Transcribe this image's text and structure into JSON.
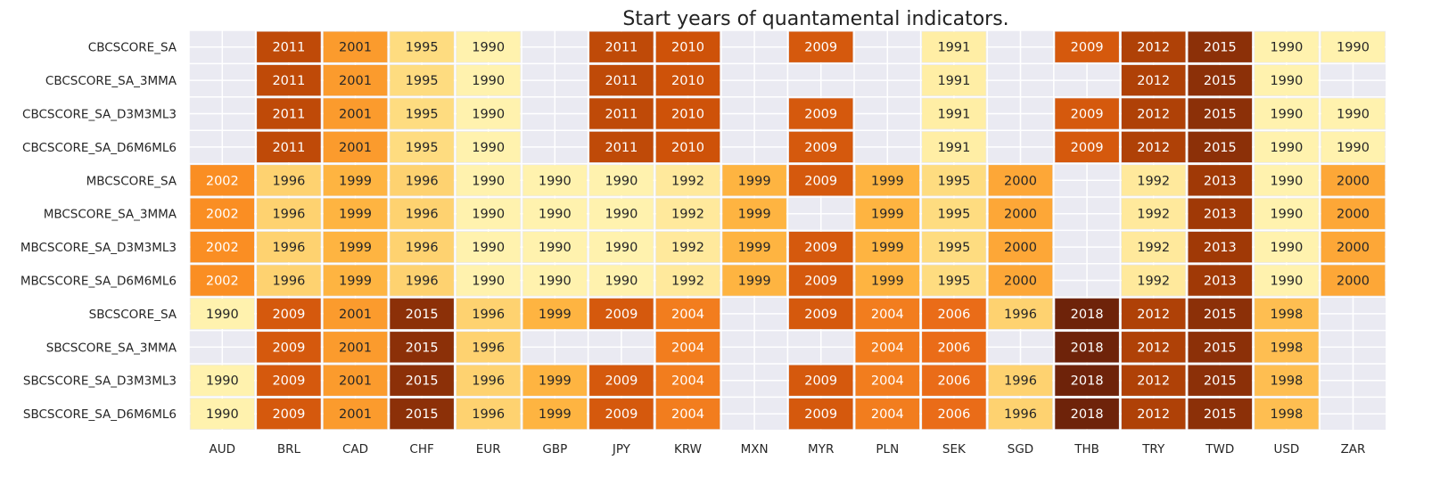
{
  "chart_data": {
    "type": "heatmap",
    "title": "Start years of quantamental indicators.",
    "columns": [
      "AUD",
      "BRL",
      "CAD",
      "CHF",
      "EUR",
      "GBP",
      "JPY",
      "KRW",
      "MXN",
      "MYR",
      "PLN",
      "SEK",
      "SGD",
      "THB",
      "TRY",
      "TWD",
      "USD",
      "ZAR"
    ],
    "rows": [
      "CBCSCORE_SA",
      "CBCSCORE_SA_3MMA",
      "CBCSCORE_SA_D3M3ML3",
      "CBCSCORE_SA_D6M6ML6",
      "MBCSCORE_SA",
      "MBCSCORE_SA_3MMA",
      "MBCSCORE_SA_D3M3ML3",
      "MBCSCORE_SA_D6M6ML6",
      "SBCSCORE_SA",
      "SBCSCORE_SA_3MMA",
      "SBCSCORE_SA_D3M3ML3",
      "SBCSCORE_SA_D6M6ML6"
    ],
    "values": [
      [
        null,
        2011,
        2001,
        1995,
        1990,
        null,
        2011,
        2010,
        null,
        2009,
        null,
        1991,
        null,
        2009,
        2012,
        2015,
        1990,
        1990
      ],
      [
        null,
        2011,
        2001,
        1995,
        1990,
        null,
        2011,
        2010,
        null,
        null,
        null,
        1991,
        null,
        null,
        2012,
        2015,
        1990,
        null
      ],
      [
        null,
        2011,
        2001,
        1995,
        1990,
        null,
        2011,
        2010,
        null,
        2009,
        null,
        1991,
        null,
        2009,
        2012,
        2015,
        1990,
        1990
      ],
      [
        null,
        2011,
        2001,
        1995,
        1990,
        null,
        2011,
        2010,
        null,
        2009,
        null,
        1991,
        null,
        2009,
        2012,
        2015,
        1990,
        1990
      ],
      [
        2002,
        1996,
        1999,
        1996,
        1990,
        1990,
        1990,
        1992,
        1999,
        2009,
        1999,
        1995,
        2000,
        null,
        1992,
        2013,
        1990,
        2000
      ],
      [
        2002,
        1996,
        1999,
        1996,
        1990,
        1990,
        1990,
        1992,
        1999,
        null,
        1999,
        1995,
        2000,
        null,
        1992,
        2013,
        1990,
        2000
      ],
      [
        2002,
        1996,
        1999,
        1996,
        1990,
        1990,
        1990,
        1992,
        1999,
        2009,
        1999,
        1995,
        2000,
        null,
        1992,
        2013,
        1990,
        2000
      ],
      [
        2002,
        1996,
        1999,
        1996,
        1990,
        1990,
        1990,
        1992,
        1999,
        2009,
        1999,
        1995,
        2000,
        null,
        1992,
        2013,
        1990,
        2000
      ],
      [
        1990,
        2009,
        2001,
        2015,
        1996,
        1999,
        2009,
        2004,
        null,
        2009,
        2004,
        2006,
        1996,
        2018,
        2012,
        2015,
        1998,
        null
      ],
      [
        null,
        2009,
        2001,
        2015,
        1996,
        null,
        null,
        2004,
        null,
        null,
        2004,
        2006,
        null,
        2018,
        2012,
        2015,
        1998,
        null
      ],
      [
        1990,
        2009,
        2001,
        2015,
        1996,
        1999,
        2009,
        2004,
        null,
        2009,
        2004,
        2006,
        1996,
        2018,
        2012,
        2015,
        1998,
        null
      ],
      [
        1990,
        2009,
        2001,
        2015,
        1996,
        1999,
        2009,
        2004,
        null,
        2009,
        2004,
        2006,
        1996,
        2018,
        2012,
        2015,
        1998,
        null
      ]
    ],
    "colormap": "YlOrBr",
    "missing_color": "#eaeaf2",
    "grid": true,
    "legend": "none"
  }
}
